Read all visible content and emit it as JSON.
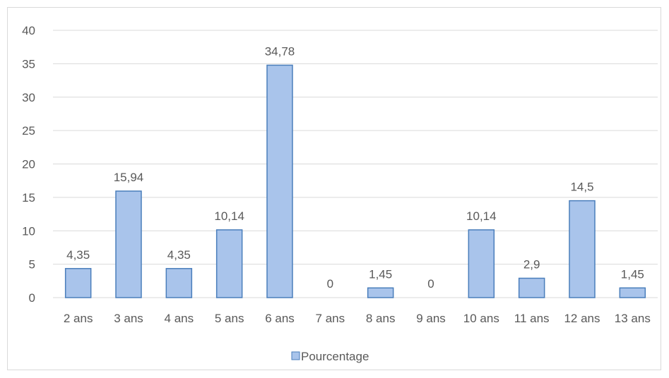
{
  "chart_data": {
    "type": "bar",
    "categories": [
      "2 ans",
      "3 ans",
      "4 ans",
      "5 ans",
      "6 ans",
      "7 ans",
      "8 ans",
      "9 ans",
      "10 ans",
      "11 ans",
      "12 ans",
      "13 ans"
    ],
    "series": [
      {
        "name": "Pourcentage",
        "values": [
          4.35,
          15.94,
          4.35,
          10.14,
          34.78,
          0,
          1.45,
          0,
          10.14,
          2.9,
          14.5,
          1.45
        ],
        "labels": [
          "4,35",
          "15,94",
          "4,35",
          "10,14",
          "34,78",
          "0",
          "1,45",
          "0",
          "10,14",
          "2,9",
          "14,5",
          "1,45"
        ]
      }
    ],
    "ylim": [
      0,
      40
    ],
    "yticks": [
      "0",
      "5",
      "10",
      "15",
      "20",
      "25",
      "30",
      "35",
      "40"
    ],
    "grid": true,
    "legend_position": "bottom",
    "colors": {
      "bar_fill": "#a9c4eb",
      "bar_stroke": "#4a7ebb",
      "grid": "#d9d9d9",
      "text": "#595959"
    }
  }
}
